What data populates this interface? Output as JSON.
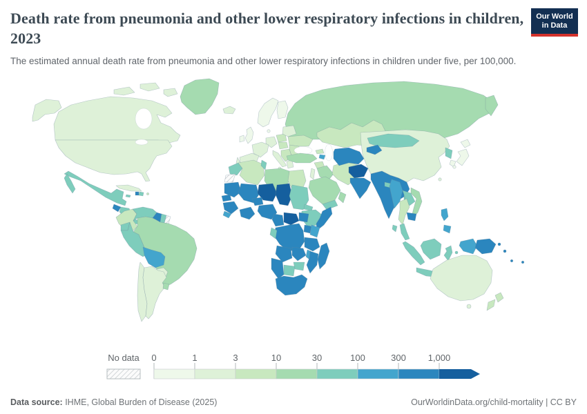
{
  "header": {
    "title": "Death rate from pneumonia and other lower respiratory infections in children, 2023",
    "subtitle": "The estimated annual death rate from pneumonia and other lower respiratory infections in children under five, per 100,000.",
    "logo": {
      "line1": "Our World",
      "line2": "in Data"
    }
  },
  "legend": {
    "no_data_label": "No data",
    "ticks": [
      "0",
      "1",
      "3",
      "10",
      "30",
      "100",
      "300",
      "1,000"
    ]
  },
  "footer": {
    "source_label": "Data source:",
    "source_text": " IHME, Global Burden of Disease (2025)",
    "right_text": "OurWorldinData.org/child-mortality | CC BY"
  },
  "chart_data": {
    "type": "choropleth",
    "title": "Death rate from pneumonia and other lower respiratory infections in children, 2023",
    "unit": "deaths per 100,000 children under five",
    "year": 2023,
    "bin_edges": [
      "0",
      "1",
      "3",
      "10",
      "30",
      "100",
      "300",
      "1,000"
    ],
    "bin_colors": [
      "#eef8ea",
      "#def1d8",
      "#c8e8bf",
      "#a5dbb0",
      "#7ecdbc",
      "#43a5cd",
      "#2b86be",
      "#155f9e"
    ],
    "no_data_key": "no_data",
    "regions": {
      "alaska": 1,
      "canada": 1,
      "arctic-islands-1": 1,
      "arctic-islands-2": 1,
      "arctic-islands-3": 1,
      "greenland": 3,
      "usa": 1,
      "mexico": 4,
      "baja-california": 4,
      "guatemala": 6,
      "honduras-nicaragua": 4,
      "costa-rica-panama": 4,
      "cuba": 1,
      "haiti": 6,
      "dominican-republic": 4,
      "jamaica": 4,
      "puerto-rico": 2,
      "colombia": 2,
      "venezuela": 4,
      "guyana": 6,
      "suriname": 4,
      "french-guiana": "no_data",
      "brazil": 3,
      "ecuador": 4,
      "peru": 4,
      "bolivia": 5,
      "paraguay": 1,
      "chile": 1,
      "argentina": 1,
      "uruguay": 3,
      "iceland": 1,
      "uk": 0,
      "ireland": 0,
      "norway-sweden": 0,
      "finland": 0,
      "denmark": 0,
      "france": 1,
      "germany": 1,
      "spain": 1,
      "portugal": 1,
      "italy": 1,
      "sicily": 1,
      "poland": 2,
      "czech-hungary": 2,
      "balkans": 2,
      "greece": 1,
      "romania-bulgaria": 2,
      "ukraine": 2,
      "belarus-baltics": 1,
      "russia": 3,
      "kamchatka": 3,
      "turkey": 3,
      "georgia": 2,
      "azerbaijan": 5,
      "syria": 2,
      "iraq": 3,
      "levant": 1,
      "iran": 2,
      "saudi-arabia": 3,
      "yemen": 4,
      "oman": 3,
      "kazakhstan": 2,
      "uzbekistan-turkmenistan": 6,
      "kyrgyzstan-tajikistan": 6,
      "afghanistan": 7,
      "pakistan": 6,
      "india": 6,
      "nepal": 4,
      "bangladesh": 4,
      "sri-lanka": 4,
      "china": 1,
      "mongolia": 4,
      "taiwan": 1,
      "north-korea": 4,
      "south-korea": 0,
      "japan-hokkaido": 0,
      "japan-honshu": 0,
      "japan-kyushu": 0,
      "myanmar": 5,
      "thailand": 2,
      "laos": 4,
      "vietnam": 3,
      "cambodia": 6,
      "malay-peninsula": 4,
      "sumatra": 4,
      "java": 4,
      "borneo": 4,
      "sulawesi": 4,
      "maluku": 4,
      "timor": 4,
      "philippines-luzon": 5,
      "philippines-mindanao": 5,
      "west-papua": 5,
      "papua-new-guinea": 6,
      "new-britain": 6,
      "solomon-islands": 6,
      "vanuatu": 6,
      "fiji": 6,
      "australia": 1,
      "tasmania": 1,
      "new-zealand-north": 2,
      "new-zealand-south": 2,
      "morocco": 4,
      "western-sahara": "no_data",
      "algeria": 2,
      "tunisia": 4,
      "libya": 3,
      "egypt": 2,
      "mauritania": 6,
      "mali": 6,
      "senegal": 6,
      "guinea": 6,
      "sierra-leone-liberia": 5,
      "burkina-faso": 6,
      "cote-divoire-ghana": 6,
      "niger": 7,
      "chad": 7,
      "nigeria": 6,
      "sudan": 4,
      "eritrea": 4,
      "ethiopia": 4,
      "somalia": 6,
      "cameroon": 6,
      "central-african-republic": 7,
      "south-sudan": 6,
      "drc": 6,
      "uganda": 6,
      "kenya": 5,
      "tanzania": 6,
      "gabon-congo": 4,
      "angola": 6,
      "zambia": 6,
      "malawi": 5,
      "mozambique": 6,
      "zimbabwe": 4,
      "botswana": 4,
      "namibia": 6,
      "south-africa": 6,
      "madagascar": 6
    }
  }
}
